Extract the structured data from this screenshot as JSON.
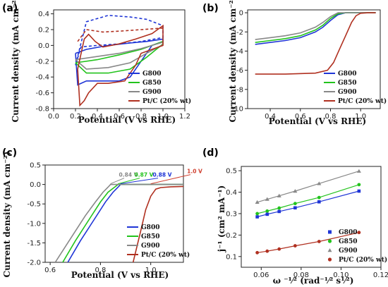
{
  "chart_data": [
    {
      "panel": "(a)",
      "type": "line",
      "xlabel": "Potential (V vs RHE)",
      "ylabel": "Current density (mA cm⁻²)",
      "xlim": [
        0.0,
        1.2
      ],
      "ylim": [
        -0.8,
        0.45
      ],
      "xticks": [
        "0.0",
        "0.2",
        "0.4",
        "0.6",
        "0.8",
        "1.0",
        "1.2"
      ],
      "yticks": [
        "-0.8",
        "-0.6",
        "-0.4",
        "-0.2",
        "0.0",
        "0.2",
        "0.4"
      ],
      "legend_position": "bottom-right",
      "series": [
        {
          "name": "G800",
          "color": "#1f35d6",
          "style": "dash",
          "x": [
            0.2,
            0.3,
            0.5,
            0.7,
            0.85,
            1.0,
            1.0,
            0.8,
            0.6,
            0.4,
            0.25,
            0.2
          ],
          "y": [
            -0.25,
            0.3,
            0.38,
            0.36,
            0.33,
            0.25,
            0.1,
            0.05,
            0.02,
            0.0,
            -0.02,
            -0.25
          ]
        },
        {
          "name": "G800",
          "color": "#1f35d6",
          "style": "solid",
          "x": [
            0.2,
            0.3,
            0.5,
            0.7,
            0.85,
            1.0,
            1.0,
            0.9,
            0.8,
            0.7,
            0.6,
            0.45,
            0.3,
            0.22,
            0.2
          ],
          "y": [
            -0.1,
            -0.05,
            0.0,
            0.03,
            0.05,
            0.08,
            0.05,
            0.0,
            -0.2,
            -0.4,
            -0.45,
            -0.45,
            -0.45,
            -0.5,
            -0.1
          ]
        },
        {
          "name": "G850",
          "color": "#22c31c",
          "style": "solid",
          "x": [
            0.2,
            0.4,
            0.6,
            0.8,
            1.0,
            1.0,
            0.85,
            0.7,
            0.5,
            0.3,
            0.2
          ],
          "y": [
            -0.22,
            -0.18,
            -0.12,
            -0.05,
            0.05,
            0.02,
            -0.15,
            -0.3,
            -0.35,
            -0.35,
            -0.22
          ]
        },
        {
          "name": "G900",
          "color": "#888888",
          "style": "solid",
          "x": [
            0.2,
            0.4,
            0.6,
            0.8,
            1.0,
            1.0,
            0.85,
            0.7,
            0.5,
            0.3,
            0.2
          ],
          "y": [
            -0.18,
            -0.14,
            -0.1,
            -0.04,
            0.04,
            0.01,
            -0.1,
            -0.22,
            -0.28,
            -0.3,
            -0.18
          ]
        },
        {
          "name": "Pt/C (20% wt)",
          "color": "#b03020",
          "style": "solid",
          "x": [
            0.22,
            0.28,
            0.32,
            0.38,
            0.45,
            0.6,
            0.75,
            0.9,
            1.0,
            1.0,
            0.9,
            0.8,
            0.75,
            0.65,
            0.5,
            0.4,
            0.32,
            0.28,
            0.24,
            0.22
          ],
          "y": [
            -0.3,
            0.08,
            0.14,
            0.05,
            -0.02,
            0.02,
            0.08,
            0.15,
            0.25,
            0.0,
            -0.05,
            -0.1,
            -0.25,
            -0.45,
            -0.48,
            -0.48,
            -0.6,
            -0.7,
            -0.76,
            -0.3
          ]
        },
        {
          "name": "Pt/C (20% wt)",
          "color": "#b03020",
          "style": "dash",
          "x": [
            0.22,
            0.3,
            0.45,
            0.6,
            0.8,
            1.0
          ],
          "y": [
            0.05,
            0.2,
            0.17,
            0.18,
            0.2,
            0.22
          ]
        }
      ]
    },
    {
      "panel": "(b)",
      "type": "line",
      "xlabel": "Potential (V vs RHE)",
      "ylabel": "Current density  (mA cm⁻²)",
      "xlim": [
        0.25,
        1.13
      ],
      "ylim": [
        -10,
        0.3
      ],
      "xticks": [
        "0.4",
        "0.6",
        "0.8",
        "1.0"
      ],
      "yticks": [
        "-10",
        "-8",
        "-6",
        "-4",
        "-2",
        "0"
      ],
      "legend_position": "bottom-right",
      "series": [
        {
          "name": "G800",
          "color": "#1f35d6",
          "x": [
            0.3,
            0.4,
            0.5,
            0.6,
            0.7,
            0.75,
            0.8,
            0.85,
            0.9,
            1.0,
            1.1
          ],
          "y": [
            -3.3,
            -3.1,
            -2.9,
            -2.6,
            -2.0,
            -1.5,
            -0.8,
            -0.2,
            0.0,
            0.0,
            0.0
          ]
        },
        {
          "name": "G850",
          "color": "#22c31c",
          "x": [
            0.3,
            0.4,
            0.5,
            0.6,
            0.7,
            0.75,
            0.8,
            0.85,
            0.9,
            1.0,
            1.1
          ],
          "y": [
            -3.1,
            -2.9,
            -2.7,
            -2.4,
            -1.8,
            -1.3,
            -0.6,
            -0.1,
            0.0,
            0.0,
            0.0
          ]
        },
        {
          "name": "G900",
          "color": "#888888",
          "x": [
            0.3,
            0.4,
            0.5,
            0.6,
            0.7,
            0.75,
            0.8,
            0.85,
            0.9,
            1.0,
            1.1
          ],
          "y": [
            -2.8,
            -2.6,
            -2.4,
            -2.1,
            -1.5,
            -1.0,
            -0.4,
            0.0,
            0.0,
            0.0,
            0.0
          ]
        },
        {
          "name": "Pt/C (20% wt)",
          "color": "#b03020",
          "x": [
            0.3,
            0.5,
            0.7,
            0.78,
            0.82,
            0.86,
            0.9,
            0.94,
            0.97,
            1.0,
            1.05,
            1.1
          ],
          "y": [
            -6.4,
            -6.4,
            -6.3,
            -6.0,
            -5.2,
            -3.8,
            -2.4,
            -1.0,
            -0.3,
            -0.05,
            0.0,
            0.0
          ]
        }
      ]
    },
    {
      "panel": "(c)",
      "type": "line",
      "xlabel": "Potential (V vs RHE)",
      "ylabel": "Current density  (mA cm⁻²)",
      "xlim": [
        0.58,
        1.13
      ],
      "ylim": [
        -2.0,
        0.5
      ],
      "xticks": [
        "0.6",
        "0.8",
        "1.0"
      ],
      "yticks": [
        "-2.0",
        "-1.5",
        "-1.0",
        "-0.5",
        "0.0",
        "0.5"
      ],
      "legend_position": "bottom-right",
      "annotations": [
        {
          "text": "0.84 V",
          "x": 0.84,
          "color": "#888888"
        },
        {
          "text": "0.87 V",
          "x": 0.87,
          "color": "#22c31c"
        },
        {
          "text": "0.88 V",
          "x": 0.88,
          "color": "#1f35d6"
        },
        {
          "text": "1.0 V",
          "x": 1.0,
          "color": "#d04030"
        }
      ],
      "series": [
        {
          "name": "G800",
          "color": "#1f35d6",
          "x": [
            0.67,
            0.72,
            0.78,
            0.82,
            0.85,
            0.87,
            0.88,
            0.9,
            1.0,
            1.13
          ],
          "y": [
            -2.0,
            -1.45,
            -0.85,
            -0.45,
            -0.2,
            -0.07,
            0.0,
            0.0,
            0.0,
            0.0
          ]
        },
        {
          "name": "G850",
          "color": "#22c31c",
          "x": [
            0.65,
            0.7,
            0.76,
            0.8,
            0.83,
            0.86,
            0.87,
            0.9,
            1.0,
            1.13
          ],
          "y": [
            -2.0,
            -1.45,
            -0.85,
            -0.45,
            -0.2,
            -0.05,
            0.0,
            0.0,
            0.0,
            0.0
          ]
        },
        {
          "name": "G900",
          "color": "#888888",
          "x": [
            0.62,
            0.68,
            0.74,
            0.78,
            0.81,
            0.83,
            0.84,
            0.88,
            1.0,
            1.13
          ],
          "y": [
            -2.0,
            -1.4,
            -0.8,
            -0.45,
            -0.2,
            -0.07,
            0.0,
            0.0,
            0.0,
            0.0
          ]
        },
        {
          "name": "Pt/C (20% wt)",
          "color": "#b03020",
          "x": [
            0.93,
            0.96,
            0.98,
            1.0,
            1.02,
            1.04,
            1.08,
            1.13
          ],
          "y": [
            -2.0,
            -1.2,
            -0.65,
            -0.3,
            -0.12,
            -0.08,
            -0.06,
            -0.05
          ]
        }
      ]
    },
    {
      "panel": "(d)",
      "type": "scatter",
      "xlabel": "ω ⁻¹⁄² (rad⁻¹⁄² s¹⁄²)",
      "ylabel": "j⁻¹ (cm² mA⁻¹)",
      "xlim": [
        0.05,
        0.12
      ],
      "ylim": [
        0.05,
        0.52
      ],
      "xticks": [
        "0.06",
        "0.08",
        "0.10",
        "0.12"
      ],
      "yticks": [
        "0.1",
        "0.2",
        "0.3",
        "0.4",
        "0.5"
      ],
      "legend_position": "bottom-right",
      "x": [
        0.058,
        0.063,
        0.069,
        0.077,
        0.089,
        0.109
      ],
      "series": [
        {
          "name": "G800",
          "color": "#1f35d6",
          "marker": "square",
          "values": [
            0.285,
            0.297,
            0.31,
            0.327,
            0.355,
            0.405
          ]
        },
        {
          "name": "G850",
          "color": "#22c31c",
          "marker": "circle",
          "values": [
            0.3,
            0.312,
            0.326,
            0.347,
            0.375,
            0.435
          ]
        },
        {
          "name": "G900",
          "color": "#888888",
          "marker": "triangle",
          "values": [
            0.353,
            0.367,
            0.383,
            0.405,
            0.44,
            0.498
          ]
        },
        {
          "name": "Pt/C (20% wt)",
          "color": "#b03020",
          "marker": "circle",
          "values": [
            0.118,
            0.125,
            0.135,
            0.15,
            0.17,
            0.212
          ]
        }
      ]
    }
  ]
}
